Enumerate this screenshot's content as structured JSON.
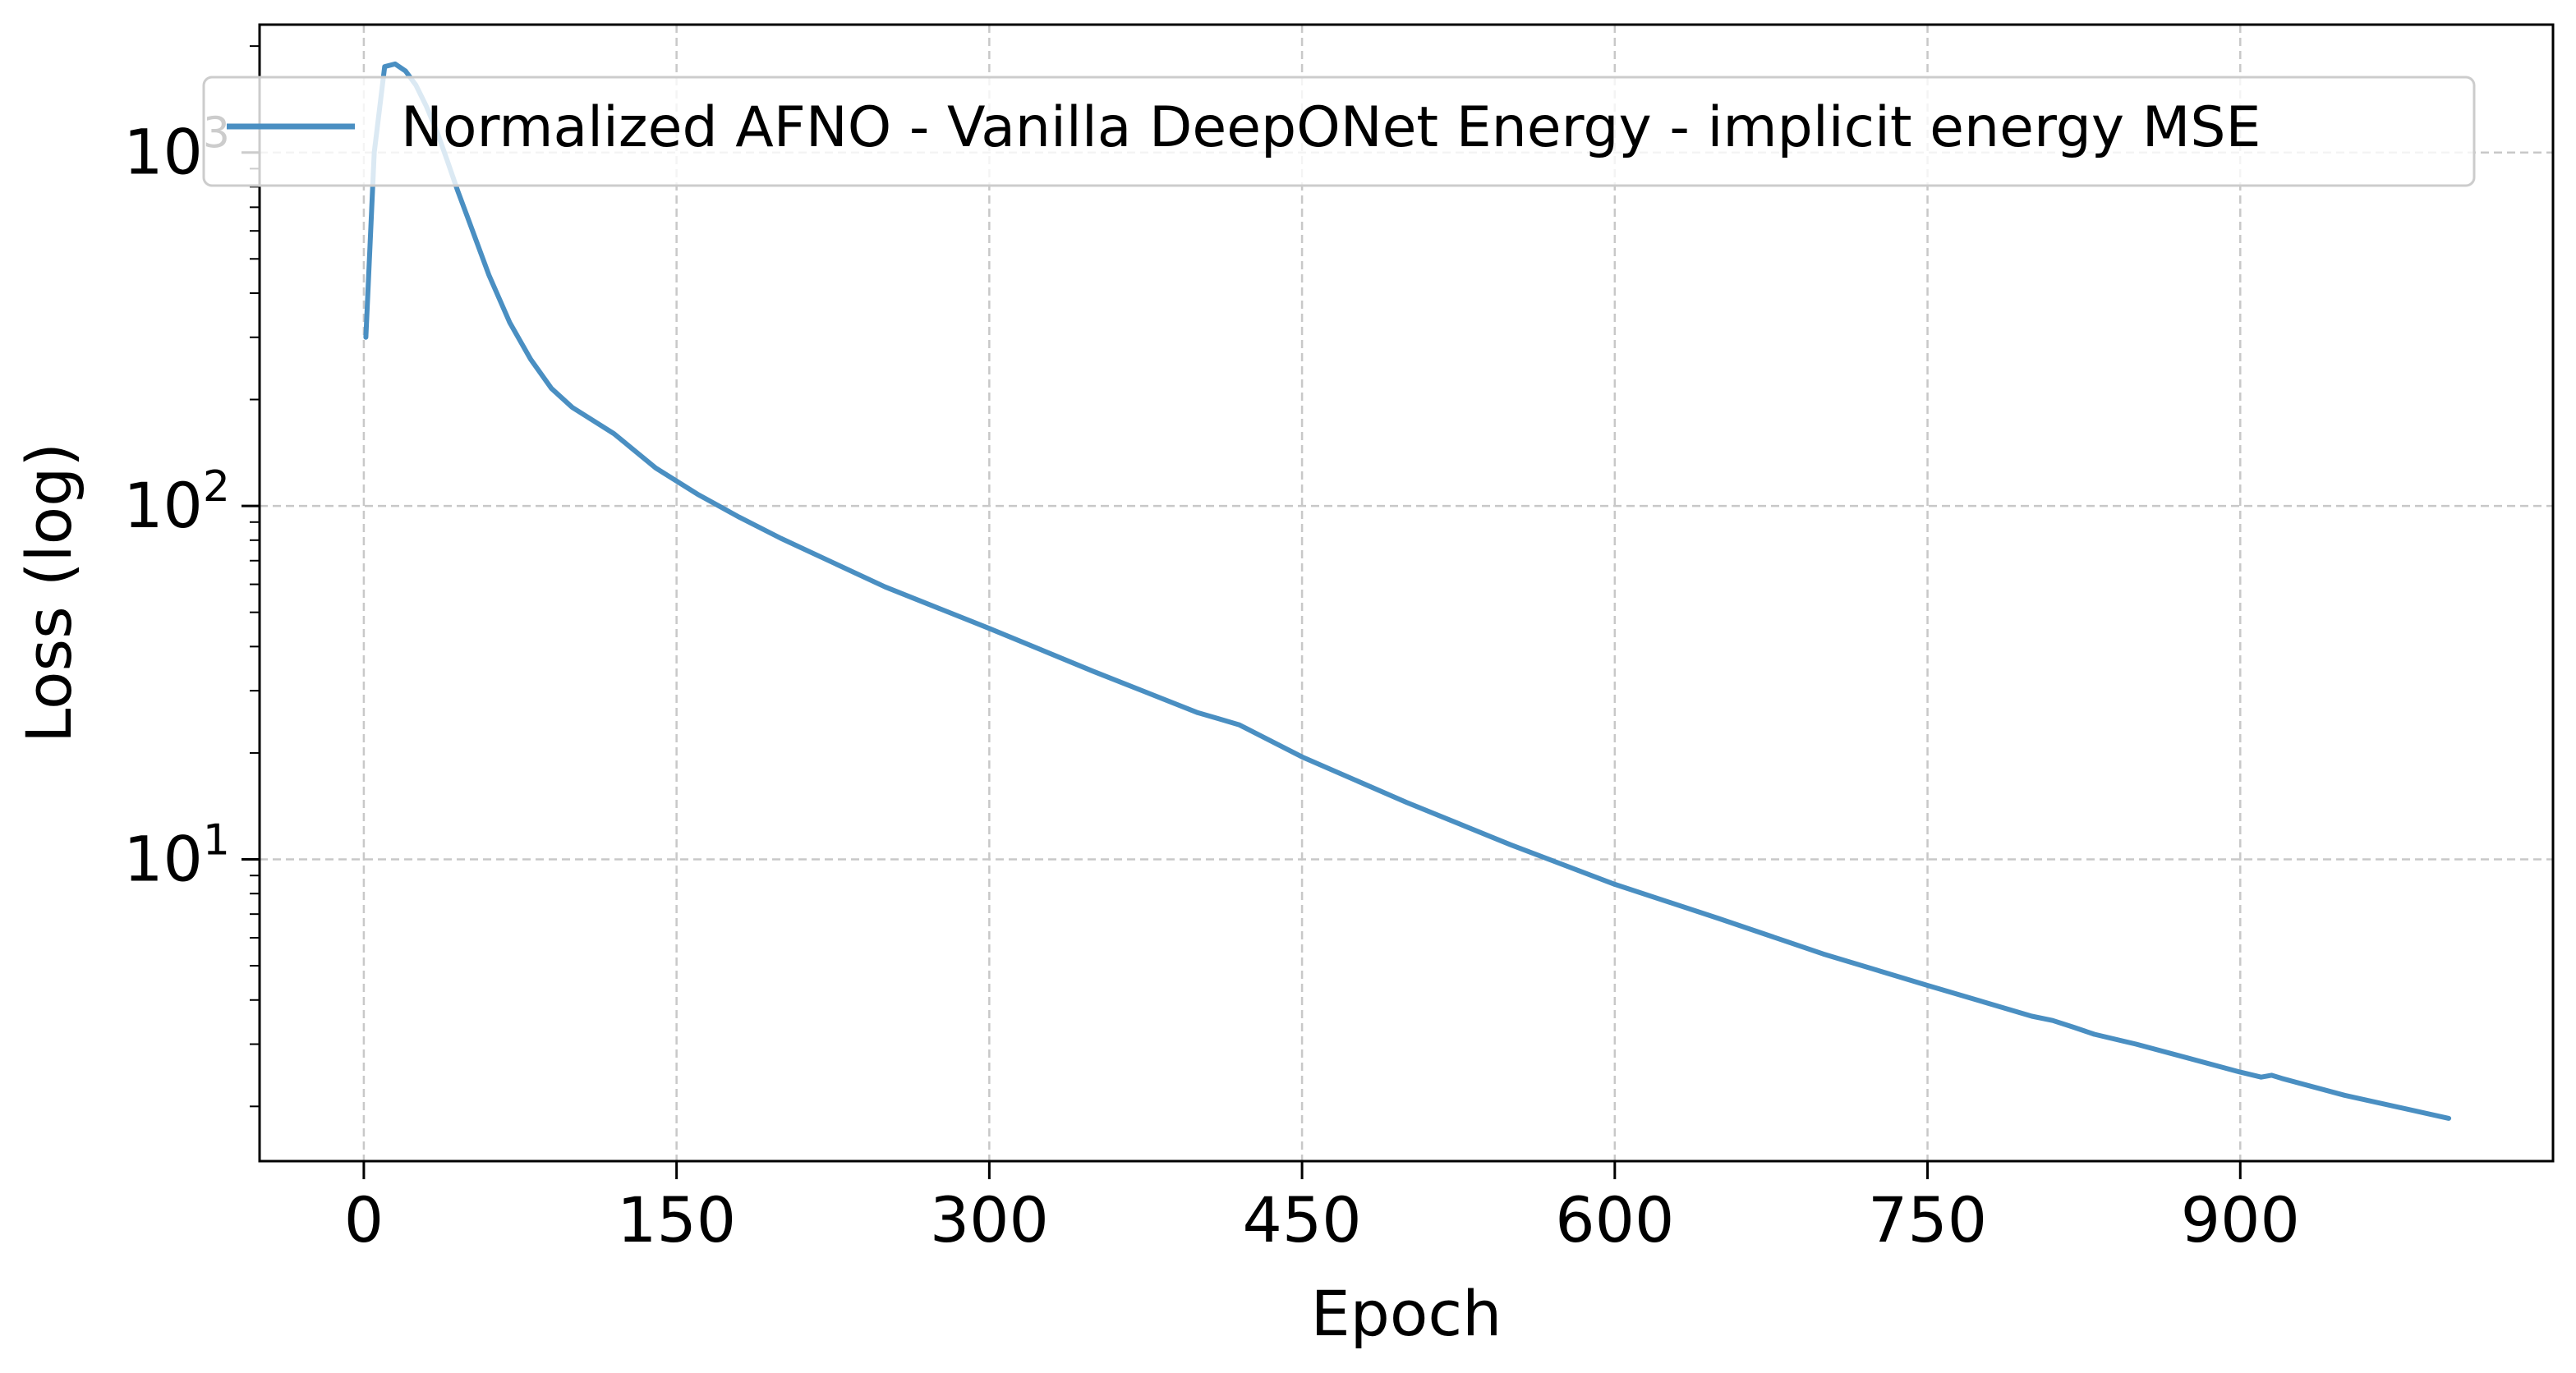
{
  "chart_data": {
    "type": "line",
    "title": "",
    "xlabel": "Epoch",
    "ylabel": "Loss (log)",
    "y_scale": "log",
    "xlim": [
      -50,
      1050
    ],
    "ylim": [
      1.4,
      2300
    ],
    "x_ticks": [
      0,
      150,
      300,
      450,
      600,
      750,
      900
    ],
    "x_tick_labels": [
      "0",
      "150",
      "300",
      "450",
      "600",
      "750",
      "900"
    ],
    "y_ticks": [
      10,
      100,
      1000
    ],
    "y_tick_labels": [
      {
        "base": "10",
        "exp": "1"
      },
      {
        "base": "10",
        "exp": "2"
      },
      {
        "base": "10",
        "exp": "3"
      }
    ],
    "grid": true,
    "legend_position": "top-right",
    "line_color": "#4a8fc2",
    "series": [
      {
        "name": "Normalized AFNO - Vanilla DeepONet Energy - implicit energy MSE",
        "x": [
          1,
          5,
          10,
          15,
          20,
          25,
          30,
          35,
          40,
          45,
          50,
          60,
          70,
          80,
          90,
          100,
          120,
          140,
          160,
          180,
          200,
          250,
          300,
          350,
          400,
          410,
          420,
          450,
          500,
          550,
          600,
          650,
          700,
          750,
          800,
          810,
          820,
          830,
          850,
          900,
          910,
          915,
          920,
          950,
          1000
        ],
        "y": [
          300,
          1000,
          1750,
          1780,
          1700,
          1550,
          1350,
          1150,
          950,
          780,
          650,
          450,
          330,
          260,
          215,
          190,
          160,
          128,
          108,
          93,
          81,
          59,
          45,
          34,
          26,
          25,
          24,
          19.5,
          14.5,
          11,
          8.5,
          6.8,
          5.4,
          4.4,
          3.6,
          3.5,
          3.35,
          3.2,
          3.0,
          2.5,
          2.42,
          2.45,
          2.4,
          2.15,
          1.85
        ]
      }
    ]
  }
}
